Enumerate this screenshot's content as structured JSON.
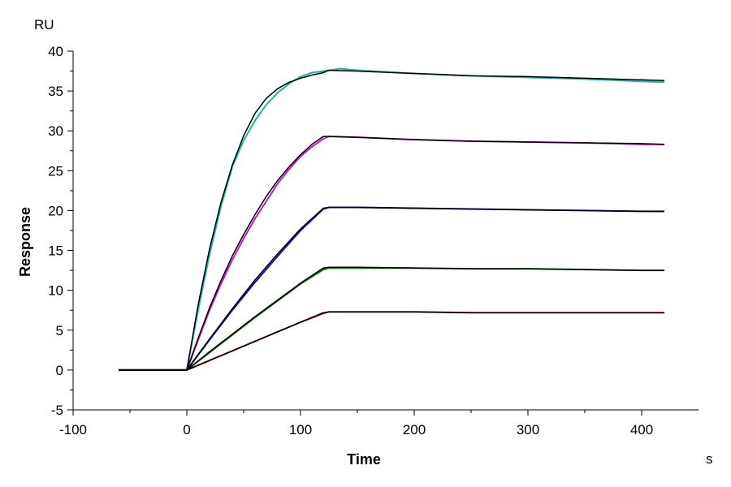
{
  "chart_data": {
    "type": "line",
    "title": "",
    "xlabel": "Time",
    "ylabel": "Response",
    "x_unit": "s",
    "y_unit": "RU",
    "xlim": [
      -100,
      450
    ],
    "ylim": [
      -5,
      40
    ],
    "x_ticks": [
      -100,
      0,
      100,
      200,
      300,
      400
    ],
    "y_ticks": [
      -5,
      0,
      5,
      10,
      15,
      20,
      25,
      30,
      35,
      40
    ],
    "grid": false,
    "legend": "none",
    "series": [
      {
        "color": "#20B2AA",
        "x": [
          -60,
          0,
          10,
          20,
          30,
          40,
          50,
          60,
          70,
          80,
          90,
          100,
          110,
          120,
          125,
          135,
          150,
          200,
          250,
          300,
          350,
          400,
          420
        ],
        "y": [
          0,
          0,
          7.5,
          14.5,
          20.5,
          25.5,
          28.8,
          31.3,
          33.3,
          34.8,
          35.9,
          36.8,
          37.3,
          37.5,
          37.6,
          37.8,
          37.6,
          37.2,
          36.9,
          36.7,
          36.5,
          36.2,
          36.1
        ]
      },
      {
        "color": "#C020C0",
        "x": [
          -60,
          0,
          10,
          20,
          30,
          40,
          50,
          60,
          70,
          80,
          90,
          100,
          110,
          120,
          125,
          150,
          200,
          250,
          300,
          350,
          400,
          420
        ],
        "y": [
          0,
          0,
          3.8,
          7.5,
          10.8,
          13.8,
          16.5,
          19.0,
          21.2,
          23.4,
          25.2,
          26.8,
          28.0,
          29.0,
          29.3,
          29.2,
          28.9,
          28.7,
          28.6,
          28.5,
          28.3,
          28.3
        ]
      },
      {
        "color": "#1010B0",
        "x": [
          -60,
          0,
          20,
          40,
          60,
          80,
          100,
          120,
          125,
          150,
          200,
          250,
          300,
          350,
          400,
          420
        ],
        "y": [
          0,
          0,
          3.8,
          7.5,
          11.0,
          14.3,
          17.5,
          20.2,
          20.4,
          20.4,
          20.3,
          20.2,
          20.1,
          20.0,
          19.9,
          19.9
        ]
      },
      {
        "color": "#107010",
        "x": [
          -60,
          0,
          20,
          40,
          60,
          80,
          100,
          120,
          125,
          150,
          200,
          250,
          300,
          350,
          400,
          420
        ],
        "y": [
          0,
          0,
          2.2,
          4.4,
          6.6,
          8.7,
          10.8,
          12.6,
          12.8,
          12.8,
          12.8,
          12.7,
          12.7,
          12.6,
          12.5,
          12.5
        ]
      },
      {
        "color": "#C01010",
        "x": [
          -60,
          0,
          20,
          40,
          60,
          80,
          100,
          120,
          125,
          150,
          200,
          250,
          300,
          350,
          400,
          420
        ],
        "y": [
          0,
          0,
          1.2,
          2.4,
          3.6,
          4.8,
          6.0,
          7.1,
          7.3,
          7.3,
          7.3,
          7.2,
          7.2,
          7.2,
          7.2,
          7.2
        ]
      }
    ],
    "fits": [
      {
        "color": "#000000",
        "x": [
          -60,
          0,
          10,
          20,
          30,
          40,
          50,
          60,
          70,
          80,
          90,
          100,
          110,
          120,
          125,
          150,
          200,
          250,
          300,
          350,
          400,
          420
        ],
        "y": [
          0,
          0,
          8.2,
          15.2,
          21.0,
          25.7,
          29.4,
          32.2,
          34.1,
          35.3,
          36.1,
          36.6,
          37.0,
          37.3,
          37.6,
          37.5,
          37.2,
          36.9,
          36.8,
          36.6,
          36.4,
          36.3
        ]
      },
      {
        "color": "#000000",
        "x": [
          -60,
          0,
          10,
          20,
          30,
          40,
          50,
          60,
          70,
          80,
          90,
          100,
          110,
          120,
          125,
          150,
          200,
          250,
          300,
          350,
          400,
          420
        ],
        "y": [
          0,
          0,
          4.0,
          7.8,
          11.2,
          14.3,
          17.0,
          19.5,
          21.8,
          23.8,
          25.5,
          27.0,
          28.3,
          29.3,
          29.3,
          29.2,
          28.9,
          28.7,
          28.6,
          28.5,
          28.4,
          28.3
        ]
      },
      {
        "color": "#000000",
        "x": [
          -60,
          0,
          20,
          40,
          60,
          80,
          100,
          120,
          125,
          150,
          200,
          250,
          300,
          350,
          400,
          420
        ],
        "y": [
          0,
          0,
          3.9,
          7.7,
          11.3,
          14.6,
          17.7,
          20.3,
          20.4,
          20.4,
          20.3,
          20.2,
          20.1,
          20.0,
          19.9,
          19.9
        ]
      },
      {
        "color": "#000000",
        "x": [
          -60,
          0,
          20,
          40,
          60,
          80,
          100,
          120,
          125,
          150,
          200,
          250,
          300,
          350,
          400,
          420
        ],
        "y": [
          0,
          0,
          2.3,
          4.5,
          6.7,
          8.8,
          10.9,
          12.8,
          12.9,
          12.9,
          12.8,
          12.7,
          12.7,
          12.6,
          12.5,
          12.5
        ]
      },
      {
        "color": "#000000",
        "x": [
          -60,
          0,
          20,
          40,
          60,
          80,
          100,
          120,
          125,
          150,
          200,
          250,
          300,
          350,
          400,
          420
        ],
        "y": [
          0,
          0,
          1.2,
          2.4,
          3.6,
          4.8,
          6.0,
          7.2,
          7.3,
          7.3,
          7.3,
          7.2,
          7.2,
          7.2,
          7.2,
          7.2
        ]
      }
    ]
  }
}
